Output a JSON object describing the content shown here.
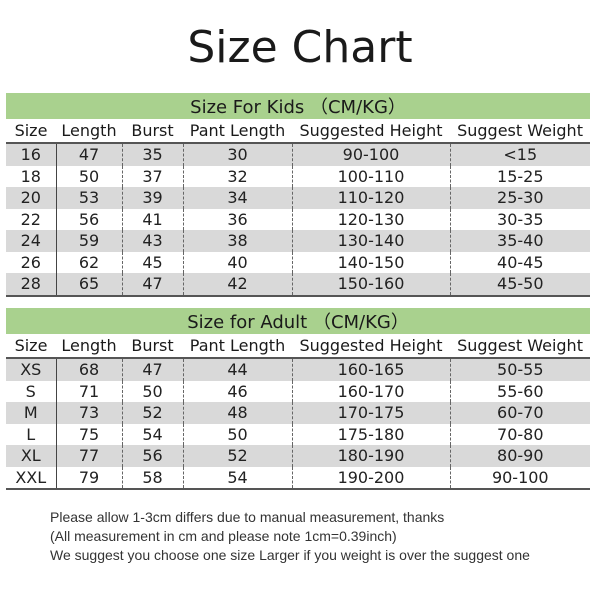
{
  "title": "Size Chart",
  "columns": [
    "Size",
    "Length",
    "Burst",
    "Pant Length",
    "Suggested Height",
    "Suggest Weight"
  ],
  "kids": {
    "heading": "Size For Kids （CM/KG）",
    "rows": [
      [
        "16",
        "47",
        "35",
        "30",
        "90-100",
        "<15"
      ],
      [
        "18",
        "50",
        "37",
        "32",
        "100-110",
        "15-25"
      ],
      [
        "20",
        "53",
        "39",
        "34",
        "110-120",
        "25-30"
      ],
      [
        "22",
        "56",
        "41",
        "36",
        "120-130",
        "30-35"
      ],
      [
        "24",
        "59",
        "43",
        "38",
        "130-140",
        "35-40"
      ],
      [
        "26",
        "62",
        "45",
        "40",
        "140-150",
        "40-45"
      ],
      [
        "28",
        "65",
        "47",
        "42",
        "150-160",
        "45-50"
      ]
    ]
  },
  "adult": {
    "heading": "Size for Adult （CM/KG）",
    "rows": [
      [
        "XS",
        "68",
        "47",
        "44",
        "160-165",
        "50-55"
      ],
      [
        "S",
        "71",
        "50",
        "46",
        "160-170",
        "55-60"
      ],
      [
        "M",
        "73",
        "52",
        "48",
        "170-175",
        "60-70"
      ],
      [
        "L",
        "75",
        "54",
        "50",
        "175-180",
        "70-80"
      ],
      [
        "XL",
        "77",
        "56",
        "52",
        "180-190",
        "80-90"
      ],
      [
        "XXL",
        "79",
        "58",
        "54",
        "190-200",
        "90-100"
      ]
    ]
  },
  "notes": [
    "Please allow 1-3cm differs due to manual measurement, thanks",
    "(All measurement in cm and please note 1cm=0.39inch)",
    "We suggest you choose one size Larger if you weight is over the suggest one"
  ],
  "colors": {
    "header_green": "#a9d18e",
    "row_gray": "#d9d9d9"
  }
}
